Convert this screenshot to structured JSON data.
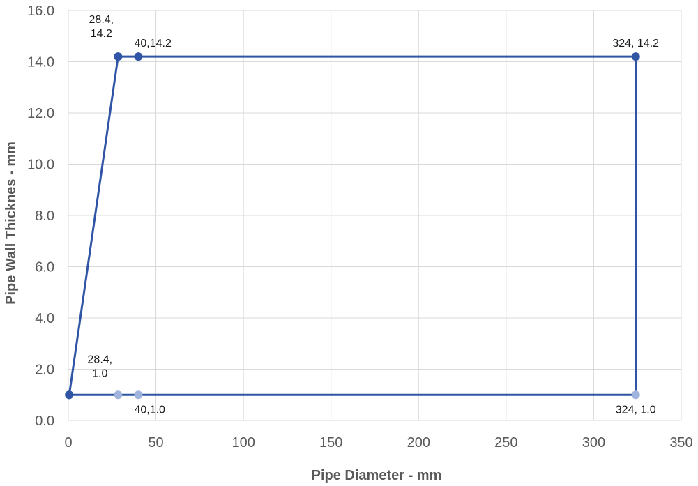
{
  "chart_data": {
    "type": "scatter",
    "title": "",
    "xlabel": "Pipe Diameter - mm",
    "ylabel": "Pipe Wall Thicknes - mm",
    "xlim": [
      0,
      350
    ],
    "ylim": [
      0,
      16
    ],
    "x_ticks": [
      "0",
      "50",
      "100",
      "150",
      "200",
      "250",
      "300",
      "350"
    ],
    "y_ticks": [
      "0.0",
      "2.0",
      "4.0",
      "6.0",
      "8.0",
      "10.0",
      "12.0",
      "14.0",
      "16.0"
    ],
    "grid": true,
    "legend": "none",
    "series": [
      {
        "line_color": "#2f55a4",
        "points": [
          {
            "x": 0.5,
            "y": 1.0,
            "color": "#2f55a4"
          },
          {
            "x": 28.4,
            "y": 14.2,
            "color": "#2f55a4"
          },
          {
            "x": 40,
            "y": 14.2,
            "color": "#2f55a4"
          },
          {
            "x": 324,
            "y": 14.2,
            "color": "#2f55a4"
          },
          {
            "x": 324,
            "y": 1.0,
            "color": "#9fb3dc"
          },
          {
            "x": 40,
            "y": 1.0,
            "color": "#9fb3dc"
          },
          {
            "x": 28.4,
            "y": 1.0,
            "color": "#9fb3dc"
          },
          {
            "x": 0.5,
            "y": 1.0,
            "color": "#2f55a4"
          }
        ]
      }
    ],
    "annotations": [
      {
        "lines": [
          "28.4,",
          "14.2"
        ],
        "anchor_x": 28.4,
        "anchor_y": 14.2,
        "placement": "above-left"
      },
      {
        "lines": [
          "40,14.2"
        ],
        "anchor_x": 40,
        "anchor_y": 14.2,
        "placement": "above-right"
      },
      {
        "lines": [
          "324, 14.2"
        ],
        "anchor_x": 324,
        "anchor_y": 14.2,
        "placement": "above"
      },
      {
        "lines": [
          "28.4,",
          "1.0"
        ],
        "anchor_x": 28.4,
        "anchor_y": 1.0,
        "placement": "above-left"
      },
      {
        "lines": [
          "40,1.0"
        ],
        "anchor_x": 40,
        "anchor_y": 1.0,
        "placement": "below-right"
      },
      {
        "lines": [
          "324, 1.0"
        ],
        "anchor_x": 324,
        "anchor_y": 1.0,
        "placement": "below"
      }
    ]
  }
}
